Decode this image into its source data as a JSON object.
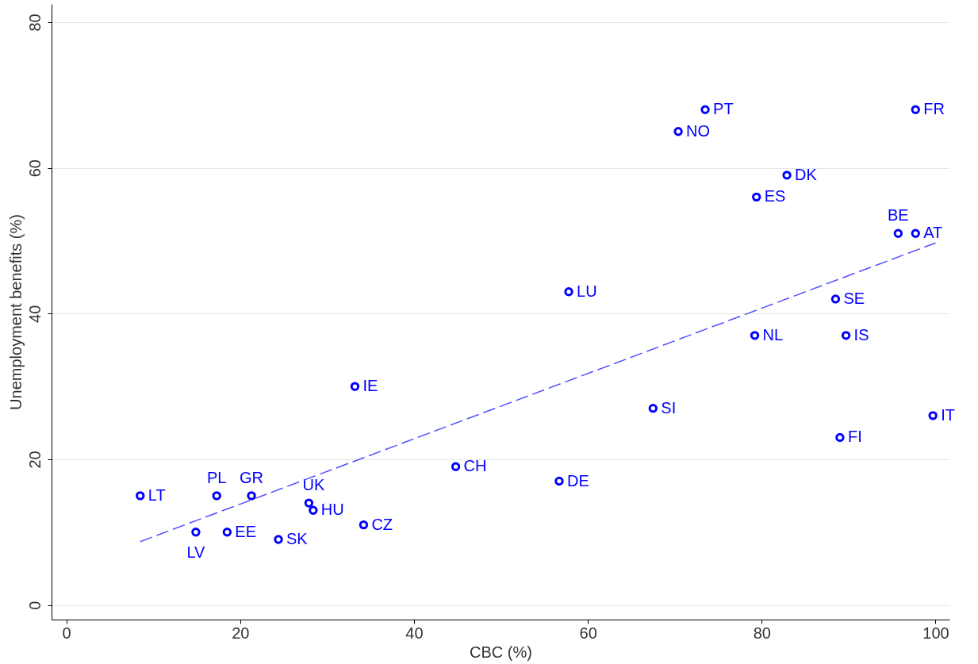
{
  "chart_data": {
    "type": "scatter",
    "xlabel": "CBC (%)",
    "ylabel": "Unemployment benefits (%)",
    "xlim": [
      -1.7,
      101.6
    ],
    "ylim": [
      -2,
      82.5
    ],
    "xticks": [
      0,
      20,
      40,
      60,
      80,
      100
    ],
    "yticks": [
      0,
      20,
      40,
      60,
      80
    ],
    "grid": "y",
    "series": [
      {
        "color": "#0000ff",
        "marker": "circle",
        "x": [
          8.5,
          14.9,
          17.3,
          21.3,
          18.5,
          24.4,
          27.9,
          28.4,
          34.2,
          33.2,
          44.8,
          56.7,
          57.8,
          67.5,
          70.4,
          73.5,
          79.4,
          79.2,
          82.9,
          88.5,
          89.0,
          89.7,
          95.7,
          97.7,
          97.7,
          99.7
        ],
        "values": [
          15,
          10,
          15,
          15,
          10,
          9,
          14,
          13,
          11,
          30,
          19,
          17,
          43,
          27,
          65,
          68,
          56,
          37,
          59,
          42,
          23,
          37,
          51,
          51,
          68,
          26
        ],
        "value_labels": [
          "LT",
          "LV",
          "PL",
          "GR",
          "EE",
          "SK",
          "UK",
          "HU",
          "CZ",
          "IE",
          "CH",
          "DE",
          "LU",
          "SI",
          "NO",
          "PT",
          "ES",
          "NL",
          "DK",
          "SE",
          "FI",
          "IS",
          "BE",
          "AT",
          "FR",
          "IT"
        ]
      },
      {
        "type": "line",
        "color": "#5050ff",
        "line_style": "dashed",
        "x": [
          8.5,
          100
        ],
        "values": [
          8.7,
          49.7
        ]
      }
    ]
  }
}
